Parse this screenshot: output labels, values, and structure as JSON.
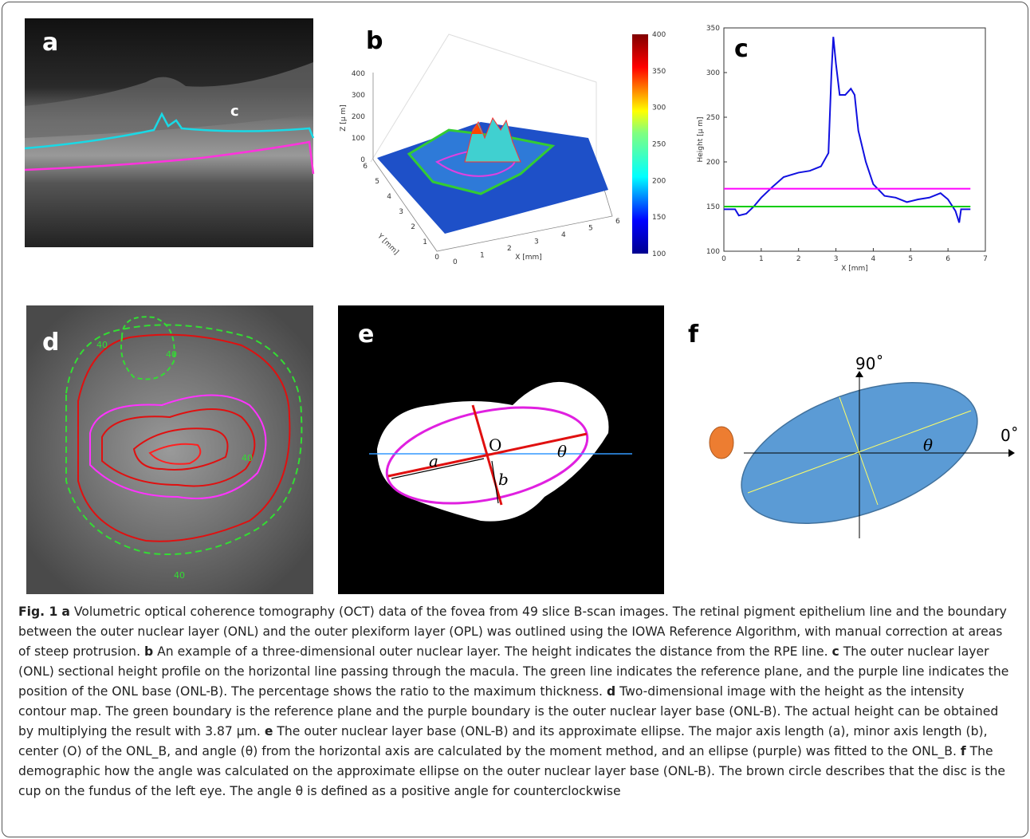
{
  "panels": {
    "a": "a",
    "b": "b",
    "c": "c",
    "d": "d",
    "e": "e",
    "f": "f"
  },
  "panel_a": {
    "label": "c"
  },
  "panel_b": {
    "zlabel": "Z [μ m]",
    "ylabel": "Y [mm]",
    "xlabel": "X [mm]",
    "zticks": [
      0,
      100,
      200,
      300,
      400
    ],
    "yticks": [
      0,
      1,
      2,
      3,
      4,
      5,
      6
    ],
    "xticks": [
      0,
      1,
      2,
      3,
      4,
      5,
      6
    ],
    "colorbar_ticks": [
      100,
      150,
      200,
      250,
      300,
      350,
      400
    ],
    "colorbar_lim": [
      100,
      400
    ]
  },
  "chart_data": {
    "type": "line",
    "xlabel": "X [mm]",
    "ylabel": "Height [μ m]",
    "xlim": [
      0,
      7
    ],
    "ylim": [
      100,
      350
    ],
    "xticks": [
      0,
      1,
      2,
      3,
      4,
      5,
      6,
      7
    ],
    "yticks": [
      100,
      150,
      200,
      250,
      300,
      350
    ],
    "series": [
      {
        "color": "#1010e0",
        "x": [
          0,
          0.3,
          0.4,
          0.6,
          0.8,
          1.0,
          1.3,
          1.6,
          2.0,
          2.3,
          2.6,
          2.8,
          2.88,
          2.93,
          3.0,
          3.1,
          3.25,
          3.4,
          3.5,
          3.6,
          3.8,
          4.0,
          4.3,
          4.6,
          4.9,
          5.2,
          5.5,
          5.8,
          6.0,
          6.2,
          6.3,
          6.35,
          6.6
        ],
        "values": [
          147,
          147,
          140,
          142,
          150,
          160,
          172,
          183,
          188,
          190,
          195,
          210,
          300,
          340,
          310,
          275,
          275,
          282,
          275,
          235,
          200,
          175,
          162,
          160,
          155,
          158,
          160,
          165,
          158,
          145,
          132,
          147,
          147
        ]
      },
      {
        "color": "#00cc00",
        "x": [
          0,
          6.6
        ],
        "values": [
          150,
          150
        ]
      },
      {
        "color": "#ff00ff",
        "x": [
          0,
          6.6
        ],
        "values": [
          170,
          170
        ]
      }
    ]
  },
  "panel_d": {
    "contour_labels": [
      "40",
      "40",
      "40",
      "40"
    ]
  },
  "panel_e": {
    "center": "O",
    "major": "a",
    "minor": "b",
    "angle": "θ"
  },
  "panel_f": {
    "up": "90˚",
    "right": "0˚",
    "angle": "θ"
  },
  "caption": {
    "label": "Fig. 1",
    "parts": [
      {
        "letter": "a",
        "text": "Volumetric optical coherence tomography (OCT) data of the fovea from 49 slice B-scan images. The retinal pigment epithelium line and the boundary between the outer nuclear layer (ONL) and the outer plexiform layer (OPL) was outlined using the IOWA Reference Algorithm, with manual correction at areas of steep protrusion."
      },
      {
        "letter": "b",
        "text": "An example of a three-dimensional outer nuclear layer. The height indicates the distance from the RPE line."
      },
      {
        "letter": "c",
        "text": "The outer nuclear layer (ONL) sectional height profile on the horizontal line passing through the macula. The green line indicates the reference plane, and the purple line indicates the position of the ONL base (ONL-B). The percentage shows the ratio to the maximum thickness."
      },
      {
        "letter": "d",
        "text": "Two-dimensional image with the height as the intensity contour map. The green boundary is the reference plane and the purple boundary is the outer nuclear layer base (ONL-B). The actual height can be obtained by multiplying the result with 3.87 μm."
      },
      {
        "letter": "e",
        "text": "The outer nuclear layer base (ONL-B) and its approximate ellipse. The major axis length (a), minor axis length (b), center (O) of the ONL_B, and angle (θ) from the horizontal axis are calculated by the moment method, and an ellipse (purple) was fitted to the ONL_B."
      },
      {
        "letter": "f",
        "text": "The demographic how the angle was calculated on the approximate ellipse on the outer nuclear layer base (ONL-B). The brown circle describes that the disc is the cup on the fundus of the left eye. The angle θ is defined as a positive angle for counterclockwise"
      }
    ]
  }
}
